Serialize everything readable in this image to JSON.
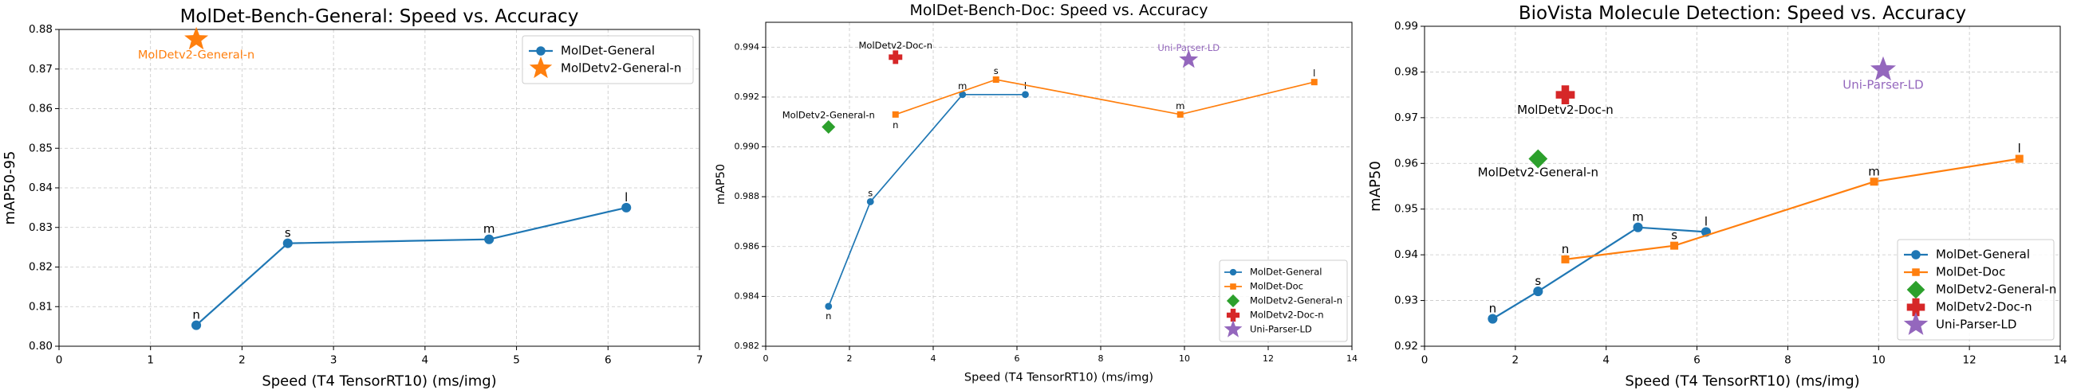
{
  "chart_data": [
    {
      "type": "scatter",
      "title": "MolDet-Bench-General: Speed vs. Accuracy",
      "xlabel": "Speed (T4 TensorRT10) (ms/img)",
      "ylabel": "mAP50-95",
      "xlim": [
        0,
        7
      ],
      "ylim": [
        0.8,
        0.88
      ],
      "xticks": [
        "0",
        "1",
        "2",
        "3",
        "4",
        "5",
        "6",
        "7"
      ],
      "yticks": [
        "0.80",
        "0.81",
        "0.82",
        "0.83",
        "0.84",
        "0.85",
        "0.86",
        "0.87",
        "0.88"
      ],
      "grid": true,
      "legend_position": "top-right",
      "series": [
        {
          "name": "MolDet-General",
          "color": "#1f77b4",
          "marker": "circle",
          "line": true,
          "points": [
            {
              "x": 1.5,
              "y": 0.8053,
              "label": "n"
            },
            {
              "x": 2.5,
              "y": 0.826,
              "label": "s"
            },
            {
              "x": 4.7,
              "y": 0.827,
              "label": "m"
            },
            {
              "x": 6.2,
              "y": 0.835,
              "label": "l"
            }
          ]
        },
        {
          "name": "MolDetv2-General-n",
          "color": "#ff7f0e",
          "marker": "star",
          "line": false,
          "points": [
            {
              "x": 1.5,
              "y": 0.8775,
              "label": "MolDetv2-General-n"
            }
          ]
        }
      ]
    },
    {
      "type": "scatter",
      "title": "MolDet-Bench-Doc: Speed vs. Accuracy",
      "xlabel": "Speed (T4 TensorRT10) (ms/img)",
      "ylabel": "mAP50",
      "xlim": [
        0,
        14
      ],
      "ylim": [
        0.982,
        0.995
      ],
      "xticks": [
        "0",
        "2",
        "4",
        "6",
        "8",
        "10",
        "12",
        "14"
      ],
      "yticks": [
        "0.982",
        "0.984",
        "0.986",
        "0.988",
        "0.990",
        "0.992",
        "0.994"
      ],
      "grid": true,
      "legend_position": "bottom-right",
      "series": [
        {
          "name": "MolDet-General",
          "color": "#1f77b4",
          "marker": "circle",
          "line": true,
          "points": [
            {
              "x": 1.5,
              "y": 0.9836,
              "label": "n"
            },
            {
              "x": 2.5,
              "y": 0.9878,
              "label": "s"
            },
            {
              "x": 4.7,
              "y": 0.9921,
              "label": "m"
            },
            {
              "x": 6.2,
              "y": 0.9921,
              "label": "l"
            }
          ]
        },
        {
          "name": "MolDet-Doc",
          "color": "#ff7f0e",
          "marker": "square",
          "line": true,
          "points": [
            {
              "x": 3.1,
              "y": 0.9913,
              "label": "n"
            },
            {
              "x": 5.5,
              "y": 0.9927,
              "label": "s"
            },
            {
              "x": 9.9,
              "y": 0.9913,
              "label": "m"
            },
            {
              "x": 13.1,
              "y": 0.9926,
              "label": "l"
            }
          ]
        },
        {
          "name": "MolDetv2-General-n",
          "color": "#2ca02c",
          "marker": "diamond",
          "line": false,
          "points": [
            {
              "x": 1.5,
              "y": 0.9908,
              "label": "MolDetv2-General-n"
            }
          ]
        },
        {
          "name": "MolDetv2-Doc-n",
          "color": "#d62728",
          "marker": "plus",
          "line": false,
          "points": [
            {
              "x": 3.1,
              "y": 0.9936,
              "label": "MolDetv2-Doc-n"
            }
          ]
        },
        {
          "name": "Uni-Parser-LD",
          "color": "#9467bd",
          "marker": "star",
          "line": false,
          "points": [
            {
              "x": 10.1,
              "y": 0.9935,
              "label": "Uni-Parser-LD"
            }
          ]
        }
      ]
    },
    {
      "type": "scatter",
      "title": "BioVista Molecule Detection: Speed vs. Accuracy",
      "xlabel": "Speed (T4 TensorRT10) (ms/img)",
      "ylabel": "mAP50",
      "xlim": [
        0,
        14
      ],
      "ylim": [
        0.92,
        0.99
      ],
      "xticks": [
        "0",
        "2",
        "4",
        "6",
        "8",
        "10",
        "12",
        "14"
      ],
      "yticks": [
        "0.92",
        "0.93",
        "0.94",
        "0.95",
        "0.96",
        "0.97",
        "0.98",
        "0.99"
      ],
      "grid": true,
      "legend_position": "bottom-right",
      "series": [
        {
          "name": "MolDet-General",
          "color": "#1f77b4",
          "marker": "circle",
          "line": true,
          "points": [
            {
              "x": 1.5,
              "y": 0.926,
              "label": "n"
            },
            {
              "x": 2.5,
              "y": 0.932,
              "label": "s"
            },
            {
              "x": 4.7,
              "y": 0.946,
              "label": "m"
            },
            {
              "x": 6.2,
              "y": 0.945,
              "label": "l"
            }
          ]
        },
        {
          "name": "MolDet-Doc",
          "color": "#ff7f0e",
          "marker": "square",
          "line": true,
          "points": [
            {
              "x": 3.1,
              "y": 0.939,
              "label": "n"
            },
            {
              "x": 5.5,
              "y": 0.942,
              "label": "s"
            },
            {
              "x": 9.9,
              "y": 0.956,
              "label": "m"
            },
            {
              "x": 13.1,
              "y": 0.961,
              "label": "l"
            }
          ]
        },
        {
          "name": "MolDetv2-General-n",
          "color": "#2ca02c",
          "marker": "diamond",
          "line": false,
          "points": [
            {
              "x": 2.5,
              "y": 0.961,
              "label": "MolDetv2-General-n"
            }
          ]
        },
        {
          "name": "MolDetv2-Doc-n",
          "color": "#d62728",
          "marker": "plus",
          "line": false,
          "points": [
            {
              "x": 3.1,
              "y": 0.975,
              "label": "MolDetv2-Doc-n"
            }
          ]
        },
        {
          "name": "Uni-Parser-LD",
          "color": "#9467bd",
          "marker": "star",
          "line": false,
          "points": [
            {
              "x": 10.1,
              "y": 0.9805,
              "label": "Uni-Parser-LD"
            }
          ]
        }
      ]
    }
  ]
}
